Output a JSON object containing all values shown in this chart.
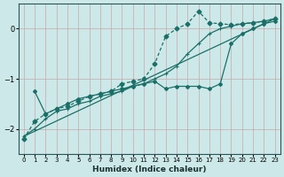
{
  "xlabel": "Humidex (Indice chaleur)",
  "xlim": [
    -0.5,
    23.5
  ],
  "ylim": [
    -2.5,
    0.5
  ],
  "yticks": [
    0,
    -1,
    -2
  ],
  "xticks": [
    0,
    1,
    2,
    3,
    4,
    5,
    6,
    7,
    8,
    9,
    10,
    11,
    12,
    13,
    14,
    15,
    16,
    17,
    18,
    19,
    20,
    21,
    22,
    23
  ],
  "bg_color": "#cde8e8",
  "grid_color": "#c8a8a8",
  "line_color": "#1a7068",
  "line1_x": [
    0,
    1,
    2,
    3,
    4,
    5,
    6,
    7,
    8,
    9,
    10,
    11,
    12,
    13,
    14,
    15,
    16,
    17,
    18,
    19,
    20,
    21,
    22,
    23
  ],
  "line1_y": [
    -2.15,
    -2.0,
    -1.8,
    -1.65,
    -1.6,
    -1.5,
    -1.45,
    -1.35,
    -1.3,
    -1.25,
    -1.15,
    -1.1,
    -1.0,
    -0.9,
    -0.75,
    -0.5,
    -0.3,
    -0.1,
    0.0,
    0.05,
    0.1,
    0.12,
    0.15,
    0.2
  ],
  "line2_x": [
    1,
    2,
    3,
    4,
    5,
    6,
    7,
    8,
    9,
    10,
    11,
    12,
    13,
    14,
    15,
    16,
    17,
    18,
    19,
    20,
    21,
    22,
    23
  ],
  "line2_y": [
    -1.25,
    -1.7,
    -1.6,
    -1.5,
    -1.4,
    -1.35,
    -1.3,
    -1.25,
    -1.2,
    -1.15,
    -1.1,
    -1.05,
    -1.2,
    -1.15,
    -1.15,
    -1.15,
    -1.2,
    -1.1,
    -0.3,
    -0.1,
    0.0,
    0.1,
    0.15
  ],
  "line3_x": [
    0,
    1,
    2,
    3,
    4,
    5,
    6,
    7,
    8,
    9,
    10,
    11,
    12,
    13,
    14,
    15,
    16,
    17,
    18,
    19,
    20,
    21,
    22,
    23
  ],
  "line3_y": [
    -2.2,
    -1.85,
    -1.7,
    -1.6,
    -1.55,
    -1.45,
    -1.35,
    -1.3,
    -1.25,
    -1.1,
    -1.05,
    -1.0,
    -0.7,
    -0.15,
    0.0,
    0.1,
    0.35,
    0.12,
    0.1,
    0.08,
    0.1,
    0.12,
    0.15,
    0.2
  ],
  "line4_x": [
    0,
    23
  ],
  "line4_y": [
    -2.15,
    0.2
  ]
}
